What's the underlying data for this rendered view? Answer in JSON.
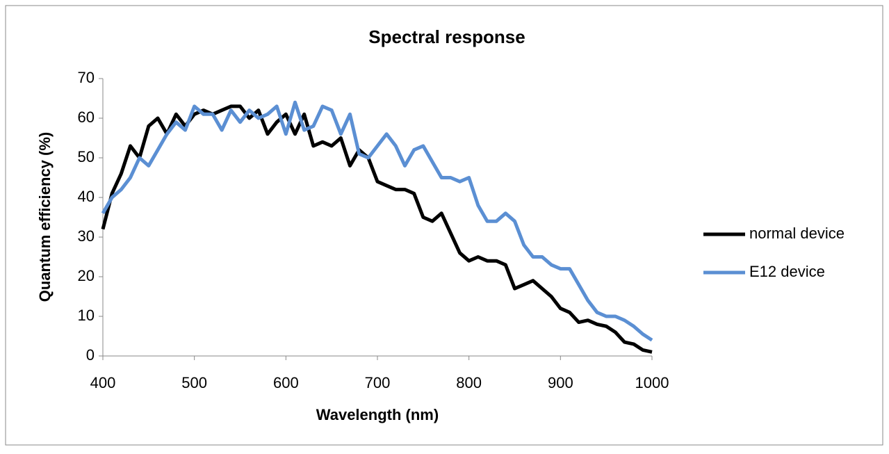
{
  "chart_data": {
    "type": "line",
    "title": "Spectral response",
    "x_label": "Wavelength (nm)",
    "y_label": "Quantum efficiency (%)",
    "x": [
      400,
      410,
      420,
      430,
      440,
      450,
      460,
      470,
      480,
      490,
      500,
      510,
      520,
      530,
      540,
      550,
      560,
      570,
      580,
      590,
      600,
      610,
      620,
      630,
      640,
      650,
      660,
      670,
      680,
      690,
      700,
      710,
      720,
      730,
      740,
      750,
      760,
      770,
      780,
      790,
      800,
      810,
      820,
      830,
      840,
      850,
      860,
      870,
      880,
      890,
      900,
      910,
      920,
      930,
      940,
      950,
      960,
      970,
      980,
      990,
      1000
    ],
    "series": [
      {
        "name": "normal device",
        "color": "#000000",
        "values": [
          32,
          41,
          46,
          53,
          50,
          58,
          60,
          56,
          61,
          58,
          61,
          62,
          61,
          62,
          63,
          63,
          60,
          62,
          56,
          59,
          61,
          56,
          61,
          53,
          54,
          53,
          55,
          48,
          52,
          50,
          44,
          43,
          42,
          42,
          41,
          35,
          34,
          36,
          31,
          26,
          24,
          25,
          24,
          24,
          23,
          17,
          18,
          19,
          17,
          15,
          12,
          11,
          8.5,
          9,
          8,
          7.5,
          6,
          3.5,
          3,
          1.5,
          1
        ]
      },
      {
        "name": "E12 device",
        "color": "#5b8fd3",
        "values": [
          36,
          40,
          42,
          45,
          50,
          48,
          52,
          56,
          59,
          57,
          63,
          61,
          61,
          57,
          62,
          59,
          62,
          60,
          61,
          63,
          56,
          64,
          57,
          58,
          63,
          62,
          56,
          61,
          51,
          50,
          53,
          56,
          53,
          48,
          52,
          53,
          49,
          45,
          45,
          44,
          45,
          38,
          34,
          34,
          36,
          34,
          28,
          25,
          25,
          23,
          22,
          22,
          18,
          14,
          11,
          10,
          10,
          9,
          7.5,
          5.5,
          4
        ]
      }
    ],
    "xlim": [
      400,
      1000
    ],
    "xticks": [
      400,
      500,
      600,
      700,
      800,
      900,
      1000
    ],
    "ylim": [
      0,
      70
    ],
    "yticks": [
      0,
      10,
      20,
      30,
      40,
      50,
      60,
      70
    ],
    "grid": false,
    "legend": "right"
  }
}
